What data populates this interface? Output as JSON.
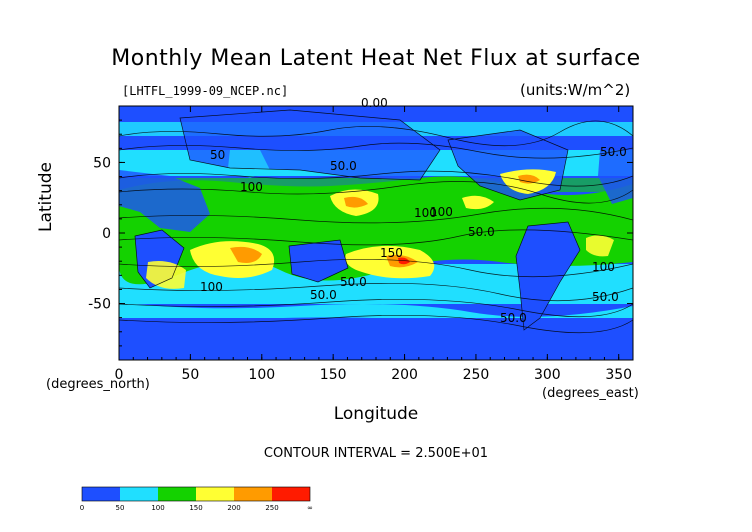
{
  "title": "Monthly Mean Latent Heat Net Flux at surface",
  "subtitle": "[LHTFL_1999-09_NCEP.nc]",
  "units": "(units:W/m^2)",
  "ylabel": "Latitude",
  "xlabel": "Longitude",
  "y_unit": "(degrees_north)",
  "x_unit": "(degrees_east)",
  "contour_interval": "CONTOUR INTERVAL = 2.500E+01",
  "chart_data": {
    "type": "heatmap",
    "xlim": [
      0,
      360
    ],
    "ylim": [
      -90,
      90
    ],
    "x_ticks": [
      "0",
      "50",
      "100",
      "150",
      "200",
      "250",
      "300",
      "350"
    ],
    "y_ticks": [
      "50",
      "0",
      "-50"
    ],
    "contour_labels": [
      "0.00",
      "50",
      "50.0",
      "100",
      "100",
      "50.0",
      "150",
      "100",
      "50.0",
      "50.0",
      "50.0",
      "100",
      "100",
      "50.0",
      "50.0"
    ],
    "colorbar": {
      "labels": [
        "0",
        "50",
        "100",
        "150",
        "200",
        "250",
        "∞"
      ],
      "colors": [
        "#1e4fff",
        "#20dfff",
        "#14d200",
        "#ffff33",
        "#ff9b00",
        "#ff1b00"
      ]
    }
  }
}
